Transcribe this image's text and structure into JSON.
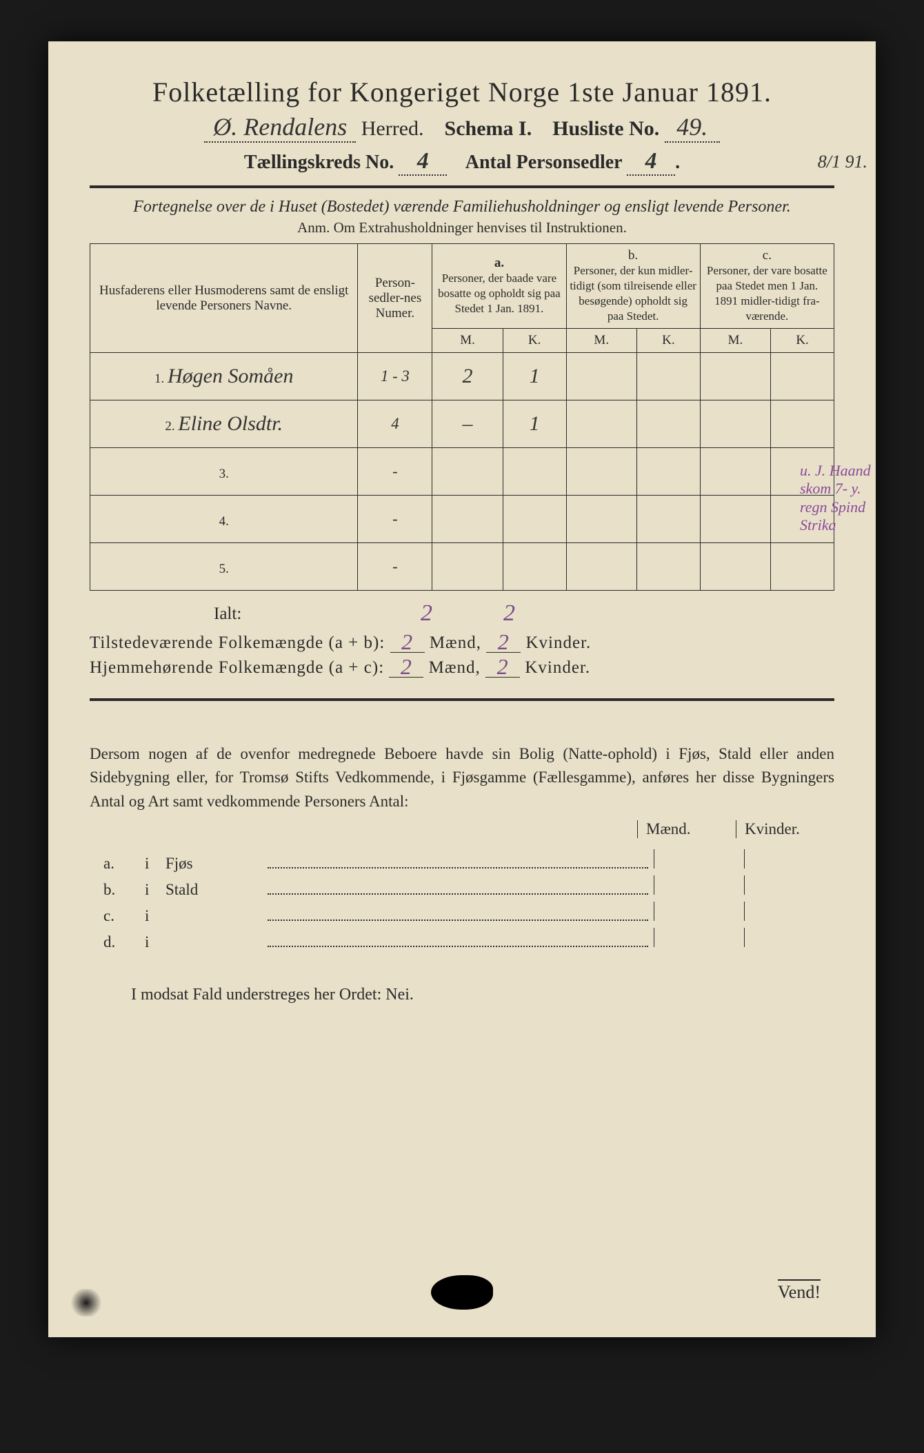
{
  "title": "Folketælling for Kongeriget Norge 1ste Januar 1891.",
  "herred_handwritten": "Ø. Rendalens",
  "herred_label": "Herred.",
  "schema_label": "Schema I.",
  "husliste_label": "Husliste No.",
  "husliste_no": "49.",
  "margin_date": "8/1 91.",
  "kreds_label": "Tællingskreds No.",
  "kreds_no": "4",
  "antal_label": "Antal Personsedler",
  "antal_val": "4",
  "subtitle": "Fortegnelse over de i Huset (Bostedet) værende Familiehusholdninger og ensligt levende Personer.",
  "anm": "Anm. Om Extrahusholdninger henvises til Instruktionen.",
  "table": {
    "col_names": "Husfaderens eller Husmoderens samt de ensligt levende Personers Navne.",
    "col_num": "Person-sedler-nes Numer.",
    "col_a_head": "a.",
    "col_a": "Personer, der baade vare bosatte og opholdt sig paa Stedet 1 Jan. 1891.",
    "col_b_head": "b.",
    "col_b": "Personer, der kun midler-tidigt (som tilreisende eller besøgende) opholdt sig paa Stedet.",
    "col_c_head": "c.",
    "col_c": "Personer, der vare bosatte paa Stedet men 1 Jan. 1891 midler-tidigt fra-værende.",
    "M": "M.",
    "K": "K.",
    "rows": [
      {
        "n": "1.",
        "name": "Høgen Somåen",
        "num": "1 - 3",
        "aM": "2",
        "aK": "1",
        "bM": "",
        "bK": "",
        "cM": "",
        "cK": ""
      },
      {
        "n": "2.",
        "name": "Eline Olsdtr.",
        "num": "4",
        "aM": "–",
        "aK": "1",
        "bM": "",
        "bK": "",
        "cM": "",
        "cK": ""
      },
      {
        "n": "3.",
        "name": "",
        "num": "-",
        "aM": "",
        "aK": "",
        "bM": "",
        "bK": "",
        "cM": "",
        "cK": ""
      },
      {
        "n": "4.",
        "name": "",
        "num": "-",
        "aM": "",
        "aK": "",
        "bM": "",
        "bK": "",
        "cM": "",
        "cK": ""
      },
      {
        "n": "5.",
        "name": "",
        "num": "-",
        "aM": "",
        "aK": "",
        "bM": "",
        "bK": "",
        "cM": "",
        "cK": ""
      }
    ]
  },
  "margin_note2": "u. J. Haand skom 7- y. regn Spind Strika",
  "ialt_label": "Ialt:",
  "ialt_M": "2",
  "ialt_K": "2",
  "tilstede_label": "Tilstedeværende Folkemængde (a + b):",
  "tilstede_M": "2",
  "tilstede_K": "2",
  "hjemme_label": "Hjemmehørende Folkemængde (a + c):",
  "hjemme_M": "2",
  "hjemme_K": "2",
  "maend": "Mænd,",
  "kvinder": "Kvinder.",
  "lower_para": "Dersom nogen af de ovenfor medregnede Beboere havde sin Bolig (Natte-ophold) i Fjøs, Stald eller anden Sidebygning eller, for Tromsø Stifts Vedkommende, i Fjøsgamme (Fællesgamme), anføres her disse Bygningers Antal og Art samt vedkommende Personers Antal:",
  "mk_M": "Mænd.",
  "mk_K": "Kvinder.",
  "lower_rows": [
    {
      "label": "a.",
      "i": "i",
      "name": "Fjøs"
    },
    {
      "label": "b.",
      "i": "i",
      "name": "Stald"
    },
    {
      "label": "c.",
      "i": "i",
      "name": ""
    },
    {
      "label": "d.",
      "i": "i",
      "name": ""
    }
  ],
  "nei": "I modsat Fald understreges her Ordet: Nei.",
  "vend": "Vend!",
  "colors": {
    "paper": "#e8e0c8",
    "ink": "#2a2a2a",
    "purple": "#7a4a8a",
    "background": "#1a1a1a"
  }
}
